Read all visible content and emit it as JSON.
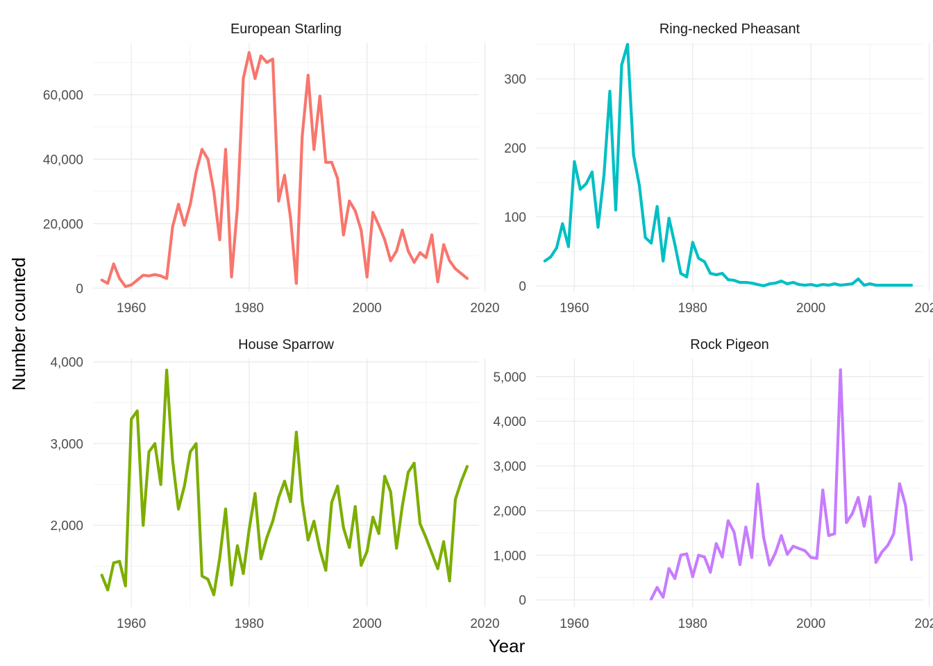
{
  "chart_data": {
    "type": "line",
    "layout": "facet-grid-2x2",
    "xlabel": "Year",
    "ylabel": "Number counted",
    "x_ticks": [
      1960,
      1980,
      2000,
      2020
    ],
    "xlim": [
      1953.5,
      2019
    ],
    "grid": true,
    "legend": "none",
    "panels": [
      {
        "title": "European Starling",
        "color": "#F8766D",
        "ylim": [
          -1000,
          76000
        ],
        "y_ticks": [
          0,
          20000,
          40000,
          60000
        ],
        "y_tick_labels": [
          "0",
          "20,000",
          "40,000",
          "60,000"
        ],
        "x": [
          1955,
          1956,
          1957,
          1958,
          1959,
          1960,
          1961,
          1962,
          1963,
          1964,
          1965,
          1966,
          1967,
          1968,
          1969,
          1970,
          1971,
          1972,
          1973,
          1974,
          1975,
          1976,
          1977,
          1978,
          1979,
          1980,
          1981,
          1982,
          1983,
          1984,
          1985,
          1986,
          1987,
          1988,
          1989,
          1990,
          1991,
          1992,
          1993,
          1994,
          1995,
          1996,
          1997,
          1998,
          1999,
          2000,
          2001,
          2002,
          2003,
          2004,
          2005,
          2006,
          2007,
          2008,
          2009,
          2010,
          2011,
          2012,
          2013,
          2014,
          2015,
          2016,
          2017
        ],
        "values": [
          2500,
          1500,
          7500,
          3000,
          500,
          1000,
          2500,
          4000,
          3800,
          4200,
          3800,
          3000,
          19000,
          26000,
          19500,
          26000,
          36000,
          43000,
          40000,
          30000,
          15000,
          43000,
          3500,
          25000,
          65000,
          73000,
          65000,
          72000,
          70000,
          71000,
          27000,
          35000,
          22000,
          1500,
          47000,
          66000,
          43000,
          59500,
          39000,
          39000,
          34000,
          16500,
          27000,
          24000,
          18000,
          3500,
          23500,
          19500,
          15000,
          8500,
          11500,
          18000,
          11500,
          8000,
          11000,
          9500,
          16500,
          2000,
          13500,
          8500,
          6000,
          4500,
          3000
        ]
      },
      {
        "title": "Ring-necked Pheasant",
        "color": "#00BFC4",
        "ylim": [
          -8,
          352
        ],
        "y_ticks": [
          0,
          100,
          200,
          300
        ],
        "y_tick_labels": [
          "0",
          "100",
          "200",
          "300"
        ],
        "x": [
          1955,
          1956,
          1957,
          1958,
          1959,
          1960,
          1961,
          1962,
          1963,
          1964,
          1965,
          1966,
          1967,
          1968,
          1969,
          1970,
          1971,
          1972,
          1973,
          1974,
          1975,
          1976,
          1977,
          1978,
          1979,
          1980,
          1981,
          1982,
          1983,
          1984,
          1985,
          1986,
          1987,
          1988,
          1989,
          1990,
          1991,
          1992,
          1993,
          1994,
          1995,
          1996,
          1997,
          1998,
          1999,
          2000,
          2001,
          2002,
          2003,
          2004,
          2005,
          2006,
          2007,
          2008,
          2009,
          2010,
          2011,
          2012,
          2013,
          2014,
          2015,
          2016,
          2017
        ],
        "values": [
          36,
          42,
          55,
          90,
          57,
          180,
          140,
          148,
          165,
          85,
          160,
          282,
          110,
          320,
          350,
          190,
          145,
          70,
          62,
          115,
          36,
          98,
          60,
          18,
          13,
          63,
          40,
          35,
          18,
          16,
          18,
          9,
          8,
          5,
          5,
          4,
          2,
          0,
          3,
          4,
          7,
          3,
          5,
          2,
          1,
          2,
          0,
          2,
          1,
          3,
          1,
          2,
          3,
          10,
          1,
          3,
          1,
          1,
          1,
          1,
          1,
          1,
          1
        ]
      },
      {
        "title": "House Sparrow",
        "color": "#7CAE00",
        "ylim": [
          1000,
          4040
        ],
        "y_ticks": [
          2000,
          3000,
          4000
        ],
        "y_tick_labels": [
          "2,000",
          "3,000",
          "4,000"
        ],
        "x": [
          1955,
          1956,
          1957,
          1958,
          1959,
          1960,
          1961,
          1962,
          1963,
          1964,
          1965,
          1966,
          1967,
          1968,
          1969,
          1970,
          1971,
          1972,
          1973,
          1974,
          1975,
          1976,
          1977,
          1978,
          1979,
          1980,
          1981,
          1982,
          1983,
          1984,
          1985,
          1986,
          1987,
          1988,
          1989,
          1990,
          1991,
          1992,
          1993,
          1994,
          1995,
          1996,
          1997,
          1998,
          1999,
          2000,
          2001,
          2002,
          2003,
          2004,
          2005,
          2006,
          2007,
          2008,
          2009,
          2010,
          2011,
          2012,
          2013,
          2014,
          2015,
          2016,
          2017
        ],
        "values": [
          1390,
          1210,
          1540,
          1560,
          1260,
          3300,
          3400,
          2000,
          2900,
          3000,
          2500,
          3900,
          2800,
          2200,
          2480,
          2900,
          3000,
          1380,
          1340,
          1150,
          1600,
          2200,
          1270,
          1750,
          1410,
          1950,
          2390,
          1590,
          1850,
          2050,
          2340,
          2540,
          2290,
          3140,
          2300,
          1820,
          2050,
          1700,
          1450,
          2280,
          2480,
          1970,
          1730,
          2230,
          1510,
          1680,
          2100,
          1900,
          2600,
          2410,
          1720,
          2240,
          2650,
          2760,
          2020,
          1850,
          1660,
          1470,
          1800,
          1320,
          2320,
          2540,
          2720
        ]
      },
      {
        "title": "Rock Pigeon",
        "color": "#C77CFF",
        "ylim": [
          -160,
          5400
        ],
        "y_ticks": [
          0,
          1000,
          2000,
          3000,
          4000,
          5000
        ],
        "y_tick_labels": [
          "0",
          "1,000",
          "2,000",
          "3,000",
          "4,000",
          "5,000"
        ],
        "x": [
          1973,
          1974,
          1975,
          1976,
          1977,
          1978,
          1979,
          1980,
          1981,
          1982,
          1983,
          1984,
          1985,
          1986,
          1987,
          1988,
          1989,
          1990,
          1991,
          1992,
          1993,
          1994,
          1995,
          1996,
          1997,
          1998,
          1999,
          2000,
          2001,
          2002,
          2003,
          2004,
          2005,
          2006,
          2007,
          2008,
          2009,
          2010,
          2011,
          2012,
          2013,
          2014,
          2015,
          2016,
          2017
        ],
        "values": [
          20,
          280,
          60,
          700,
          480,
          1000,
          1030,
          520,
          1000,
          960,
          620,
          1260,
          960,
          1770,
          1520,
          790,
          1630,
          950,
          2590,
          1400,
          780,
          1050,
          1440,
          1020,
          1200,
          1150,
          1100,
          950,
          930,
          2460,
          1440,
          1480,
          5150,
          1730,
          1930,
          2290,
          1650,
          2310,
          840,
          1070,
          1220,
          1480,
          2600,
          2120,
          900
        ]
      }
    ]
  }
}
